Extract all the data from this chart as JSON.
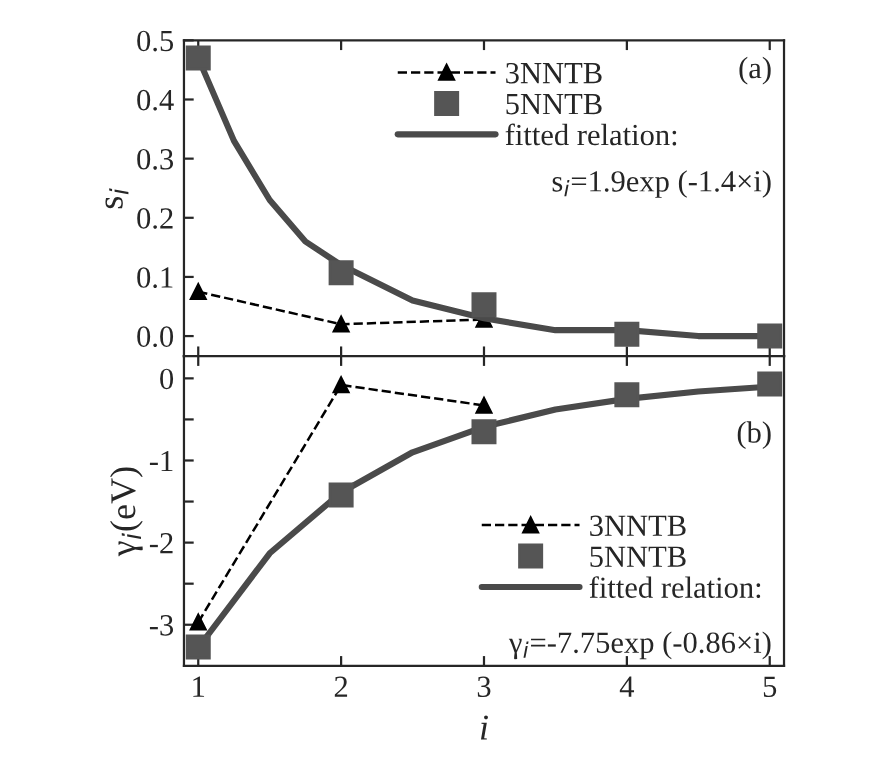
{
  "chart_data": [
    {
      "type": "line",
      "ylabel": "s$_{i}$",
      "xlim": [
        0.9,
        5.1
      ],
      "xticks": [
        {
          "value": 1,
          "label": null
        },
        {
          "value": 2,
          "label": null
        },
        {
          "value": 3,
          "label": null
        },
        {
          "value": 4,
          "label": null
        },
        {
          "value": 5,
          "label": null
        }
      ],
      "ylim": [
        -0.034,
        0.5
      ],
      "yticks": [
        {
          "value": 0,
          "label": "0.0"
        },
        {
          "value": 0.1,
          "label": "0.1"
        },
        {
          "value": 0.2,
          "label": "0.2"
        },
        {
          "value": 0.3,
          "label": "0.3"
        },
        {
          "value": 0.4,
          "label": "0.4"
        },
        {
          "value": 0.5,
          "label": "0.5"
        }
      ],
      "tick_labels": "y",
      "legend": "top right",
      "grid": false,
      "annotations": [
        "(a)",
        "s$_{i}$=1.9exp (-1.4×i)"
      ],
      "series": [
        {
          "name": "3NNTB",
          "type": "line",
          "color": "#000000",
          "marker": "triangle",
          "line_style": "dashed",
          "x": [
            1,
            2,
            3
          ],
          "values": [
            0.075,
            0.02,
            0.028
          ]
        },
        {
          "name": "5NNTB",
          "type": "scatter",
          "color": "#555555",
          "marker": "square",
          "x": [
            1,
            2,
            3,
            4,
            5
          ],
          "values": [
            0.47,
            0.107,
            0.053,
            0.003,
            0.0
          ]
        },
        {
          "name": "fitted relation:",
          "type": "line",
          "color": "#4a4a4a",
          "marker": "none",
          "line_style": "solid",
          "x": [
            1,
            1.25,
            1.5,
            1.75,
            2,
            2.5,
            3,
            3.5,
            4,
            4.5,
            5
          ],
          "values": [
            0.47,
            0.33,
            0.23,
            0.16,
            0.12,
            0.06,
            0.03,
            0.01,
            0.01,
            0.0,
            0.0
          ]
        }
      ]
    },
    {
      "type": "line",
      "xlabel": "i",
      "ylabel": "γ$_{i}$(eV)",
      "xlim": [
        0.9,
        5.1
      ],
      "xticks": [
        1,
        2,
        3,
        4,
        5
      ],
      "ylim": [
        -3.5,
        0.27
      ],
      "yticks": [
        {
          "value": -3,
          "label": "-3"
        },
        {
          "value": -2.5,
          "label": null
        },
        {
          "value": -2,
          "label": "-2"
        },
        {
          "value": -1.5,
          "label": null
        },
        {
          "value": -1,
          "label": "-1"
        },
        {
          "value": -0.5,
          "label": null
        },
        {
          "value": 0,
          "label": "0"
        }
      ],
      "legend": "bottom right",
      "grid": false,
      "annotations": [
        "(b)",
        "γ$_{i}$=-7.75exp (-0.86×i)"
      ],
      "series": [
        {
          "name": "3NNTB",
          "type": "line",
          "color": "#000000",
          "marker": "triangle",
          "line_style": "dashed",
          "x": [
            1,
            2,
            3
          ],
          "values": [
            -2.97,
            -0.08,
            -0.33
          ]
        },
        {
          "name": "5NNTB",
          "type": "scatter",
          "color": "#555555",
          "marker": "square",
          "x": [
            1,
            2,
            3,
            4,
            5
          ],
          "values": [
            -3.27,
            -1.42,
            -0.65,
            -0.2,
            -0.07
          ]
        },
        {
          "name": "fitted relation:",
          "type": "line",
          "color": "#4a4a4a",
          "marker": "none",
          "line_style": "solid",
          "x": [
            1,
            1.5,
            2,
            2.5,
            3,
            3.5,
            4,
            4.5,
            5
          ],
          "values": [
            -3.28,
            -2.13,
            -1.39,
            -0.9,
            -0.59,
            -0.38,
            -0.25,
            -0.16,
            -0.1
          ]
        }
      ]
    }
  ]
}
